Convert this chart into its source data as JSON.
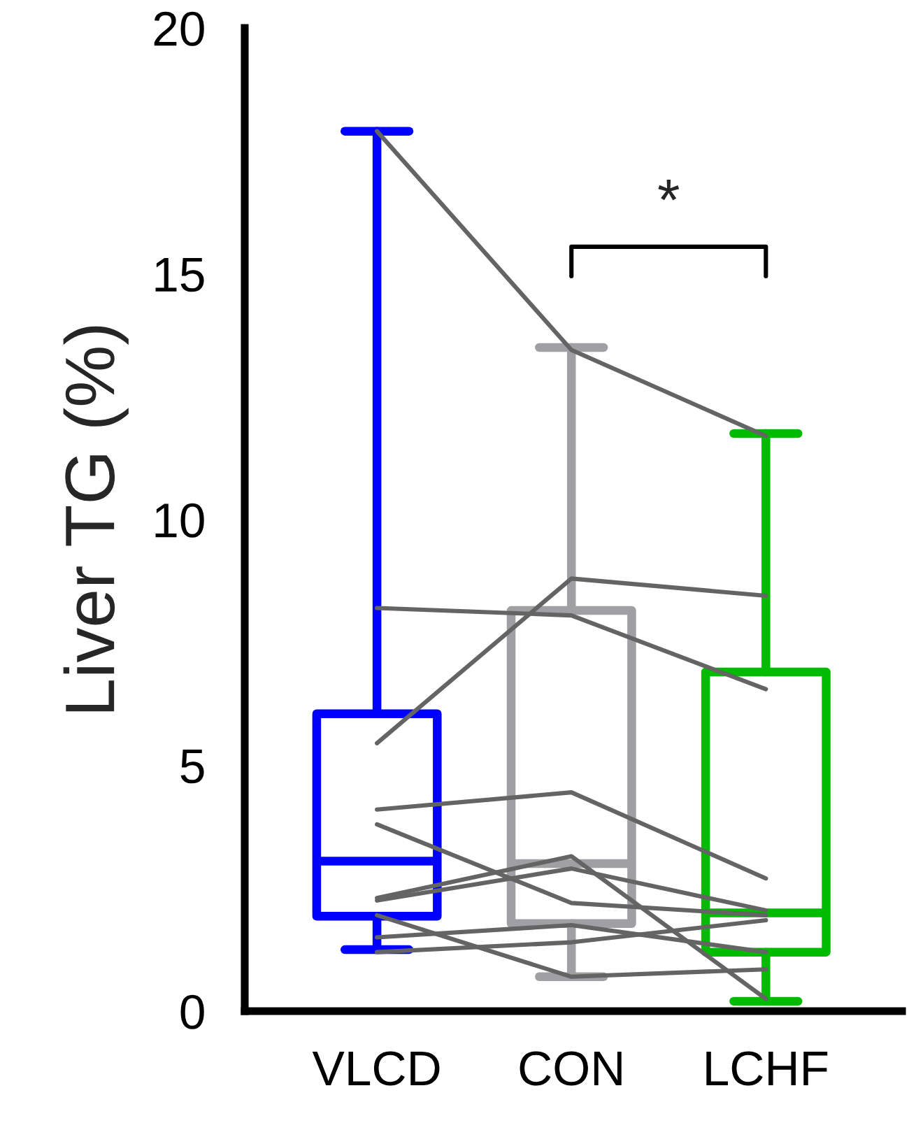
{
  "chart_data": {
    "type": "box",
    "ylabel": "Liver TG (%)",
    "categories": [
      "VLCD",
      "CON",
      "LCHF"
    ],
    "colors": [
      "#0000ff",
      "#a0a0a4",
      "#00bb00"
    ],
    "boxes": [
      {
        "low": 1.25,
        "q1": 1.93,
        "median": 3.05,
        "q3": 6.05,
        "high": 17.9
      },
      {
        "low": 0.7,
        "q1": 1.78,
        "median": 3.0,
        "q3": 8.15,
        "high": 13.5
      },
      {
        "low": 0.2,
        "q1": 1.2,
        "median": 2.0,
        "q3": 6.9,
        "high": 11.75
      }
    ],
    "series": [
      {
        "type": "line",
        "color": "#646464",
        "values": [
          17.9,
          13.45,
          11.7
        ]
      },
      {
        "type": "line",
        "color": "#646464",
        "values": [
          8.2,
          8.05,
          6.55
        ]
      },
      {
        "type": "line",
        "color": "#646464",
        "values": [
          5.45,
          8.8,
          8.45
        ]
      },
      {
        "type": "line",
        "color": "#646464",
        "values": [
          4.1,
          4.45,
          2.7
        ]
      },
      {
        "type": "line",
        "color": "#646464",
        "values": [
          3.8,
          2.2,
          1.95
        ]
      },
      {
        "type": "line",
        "color": "#646464",
        "values": [
          2.3,
          3.15,
          0.25
        ]
      },
      {
        "type": "line",
        "color": "#646464",
        "values": [
          2.25,
          2.9,
          2.05
        ]
      },
      {
        "type": "line",
        "color": "#646464",
        "values": [
          1.95,
          0.7,
          0.85
        ]
      },
      {
        "type": "line",
        "color": "#646464",
        "values": [
          1.5,
          1.75,
          1.2
        ]
      },
      {
        "type": "line",
        "color": "#646464",
        "values": [
          1.2,
          1.4,
          1.85
        ]
      }
    ],
    "ylim": [
      0,
      20
    ],
    "yticks": [
      0,
      5,
      10,
      15,
      20
    ],
    "annotations": [
      "*"
    ],
    "grid": false,
    "legend": false,
    "marker": "none",
    "line_style": "solid"
  }
}
